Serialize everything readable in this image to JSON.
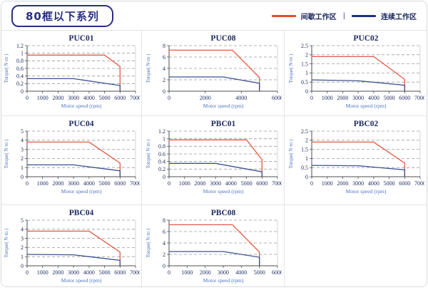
{
  "header": {
    "title": "80框以下系列",
    "separator": "|",
    "legend": [
      {
        "key": "intermittent",
        "label": "间歇工作区",
        "color": "#e8492f"
      },
      {
        "key": "continuous",
        "label": "连续工作区",
        "color": "#1b3280"
      }
    ]
  },
  "style": {
    "chart_red": "#e05a45",
    "chart_blue": "#3d5190",
    "grid_line": "#9b9b9b",
    "axis_line": "#4d4d4d",
    "plot_right_border": "#c9c9c9",
    "tick_text": "#1c2a5e",
    "title_text": "#1c2a5e",
    "axis_label_text": "#4a74c4"
  },
  "chart_data": [
    {
      "type": "line",
      "title": "PUC01",
      "xlabel": "Motor speed (rpm)",
      "ylabel": "Torque( N·m )",
      "xlim": [
        0,
        7000
      ],
      "xtick_step": 1000,
      "ylim": [
        0,
        1.2
      ],
      "ytick_step": 0.2,
      "grid": true,
      "legend_position": "top-right-global",
      "series": [
        {
          "key": "intermittent",
          "name": "间歇工作区",
          "color": "#e05a45",
          "points": [
            [
              0,
              0.95
            ],
            [
              5000,
              0.95
            ],
            [
              6000,
              0.65
            ],
            [
              6000,
              0
            ]
          ]
        },
        {
          "key": "continuous",
          "name": "连续工作区",
          "color": "#3d5190",
          "points": [
            [
              0,
              0.33
            ],
            [
              3000,
              0.33
            ],
            [
              6000,
              0.15
            ],
            [
              6000,
              0
            ]
          ]
        }
      ]
    },
    {
      "type": "line",
      "title": "PUC08",
      "xlabel": "Motor speed (rpm)",
      "ylabel": "Torque( N·m )",
      "xlim": [
        0,
        6000
      ],
      "xtick_step": 2000,
      "ylim": [
        0,
        8
      ],
      "ytick_step": 2,
      "grid": true,
      "series": [
        {
          "key": "intermittent",
          "name": "间歇工作区",
          "color": "#e05a45",
          "points": [
            [
              0,
              7.2
            ],
            [
              3500,
              7.2
            ],
            [
              5000,
              2.4
            ],
            [
              5000,
              0
            ]
          ]
        },
        {
          "key": "continuous",
          "name": "连续工作区",
          "color": "#3d5190",
          "points": [
            [
              0,
              2.5
            ],
            [
              3000,
              2.5
            ],
            [
              5000,
              1.4
            ],
            [
              5000,
              0
            ]
          ]
        }
      ]
    },
    {
      "type": "line",
      "title": "PUC02",
      "xlabel": "Motor speed (rpm)",
      "ylabel": "Torque( N·m )",
      "xlim": [
        0,
        7000
      ],
      "xtick_step": 1000,
      "ylim": [
        0,
        2.5
      ],
      "ytick_step": 0.5,
      "grid": true,
      "series": [
        {
          "key": "intermittent",
          "name": "间歇工作区",
          "color": "#e05a45",
          "points": [
            [
              0,
              1.9
            ],
            [
              4000,
              1.9
            ],
            [
              6000,
              0.65
            ],
            [
              6000,
              0
            ]
          ]
        },
        {
          "key": "continuous",
          "name": "连续工作区",
          "color": "#3d5190",
          "points": [
            [
              0,
              0.62
            ],
            [
              3000,
              0.57
            ],
            [
              6000,
              0.33
            ],
            [
              6000,
              0
            ]
          ]
        }
      ]
    },
    {
      "type": "line",
      "title": "PUC04",
      "xlabel": "Motor speed (rpm)",
      "ylabel": "Torque( N·m )",
      "xlim": [
        0,
        7000
      ],
      "xtick_step": 1000,
      "ylim": [
        0,
        5
      ],
      "ytick_step": 1,
      "grid": true,
      "series": [
        {
          "key": "intermittent",
          "name": "间歇工作区",
          "color": "#e05a45",
          "points": [
            [
              0,
              3.8
            ],
            [
              4000,
              3.8
            ],
            [
              6000,
              1.5
            ],
            [
              6000,
              0
            ]
          ]
        },
        {
          "key": "continuous",
          "name": "连续工作区",
          "color": "#3d5190",
          "points": [
            [
              0,
              1.3
            ],
            [
              3000,
              1.3
            ],
            [
              6000,
              0.65
            ],
            [
              6000,
              0
            ]
          ]
        }
      ]
    },
    {
      "type": "line",
      "title": "PBC01",
      "xlabel": "Motor speed (rpm)",
      "ylabel": "Torque( N·m )",
      "xlim": [
        0,
        7000
      ],
      "xtick_step": 1000,
      "ylim": [
        0,
        1.2
      ],
      "ytick_step": 0.2,
      "grid": true,
      "series": [
        {
          "key": "intermittent",
          "name": "间歇工作区",
          "color": "#e05a45",
          "points": [
            [
              0,
              0.97
            ],
            [
              5000,
              0.97
            ],
            [
              6000,
              0.45
            ],
            [
              6000,
              0
            ]
          ]
        },
        {
          "key": "continuous",
          "name": "连续工作区",
          "color": "#3d5190",
          "points": [
            [
              0,
              0.35
            ],
            [
              3000,
              0.35
            ],
            [
              6000,
              0.13
            ],
            [
              6000,
              0
            ]
          ]
        }
      ]
    },
    {
      "type": "line",
      "title": "PBC02",
      "xlabel": "Motor speed (rpm)",
      "ylabel": "Torque( N·m )",
      "xlim": [
        0,
        7000
      ],
      "xtick_step": 1000,
      "ylim": [
        0,
        2.5
      ],
      "ytick_step": 0.5,
      "grid": true,
      "series": [
        {
          "key": "intermittent",
          "name": "间歇工作区",
          "color": "#e05a45",
          "points": [
            [
              0,
              1.9
            ],
            [
              4000,
              1.9
            ],
            [
              6000,
              0.75
            ],
            [
              6000,
              0
            ]
          ]
        },
        {
          "key": "continuous",
          "name": "连续工作区",
          "color": "#3d5190",
          "points": [
            [
              0,
              0.62
            ],
            [
              3000,
              0.6
            ],
            [
              6000,
              0.38
            ],
            [
              6000,
              0
            ]
          ]
        }
      ]
    },
    {
      "type": "line",
      "title": "PBC04",
      "xlabel": "Motor speed (rpm)",
      "ylabel": "Torque( N·m )",
      "xlim": [
        0,
        7000
      ],
      "xtick_step": 1000,
      "ylim": [
        0,
        5
      ],
      "ytick_step": 1,
      "grid": true,
      "series": [
        {
          "key": "intermittent",
          "name": "间歇工作区",
          "color": "#e05a45",
          "points": [
            [
              0,
              3.8
            ],
            [
              4000,
              3.8
            ],
            [
              6000,
              1.5
            ],
            [
              6000,
              0
            ]
          ]
        },
        {
          "key": "continuous",
          "name": "连续工作区",
          "color": "#3d5190",
          "points": [
            [
              0,
              1.25
            ],
            [
              3000,
              1.2
            ],
            [
              6000,
              0.6
            ],
            [
              6000,
              0
            ]
          ]
        }
      ]
    },
    {
      "type": "line",
      "title": "PBC08",
      "xlabel": "Motor speed (rpm)",
      "ylabel": "Torque( N·m )",
      "xlim": [
        0,
        6000
      ],
      "xtick_step": 1000,
      "ylim": [
        0,
        8
      ],
      "ytick_step": 2,
      "grid": true,
      "series": [
        {
          "key": "intermittent",
          "name": "间歇工作区",
          "color": "#e05a45",
          "points": [
            [
              0,
              7.2
            ],
            [
              3500,
              7.2
            ],
            [
              5000,
              2.4
            ],
            [
              5000,
              0
            ]
          ]
        },
        {
          "key": "continuous",
          "name": "连续工作区",
          "color": "#3d5190",
          "points": [
            [
              0,
              2.5
            ],
            [
              3000,
              2.5
            ],
            [
              5000,
              1.5
            ],
            [
              5000,
              0
            ]
          ]
        }
      ]
    }
  ]
}
